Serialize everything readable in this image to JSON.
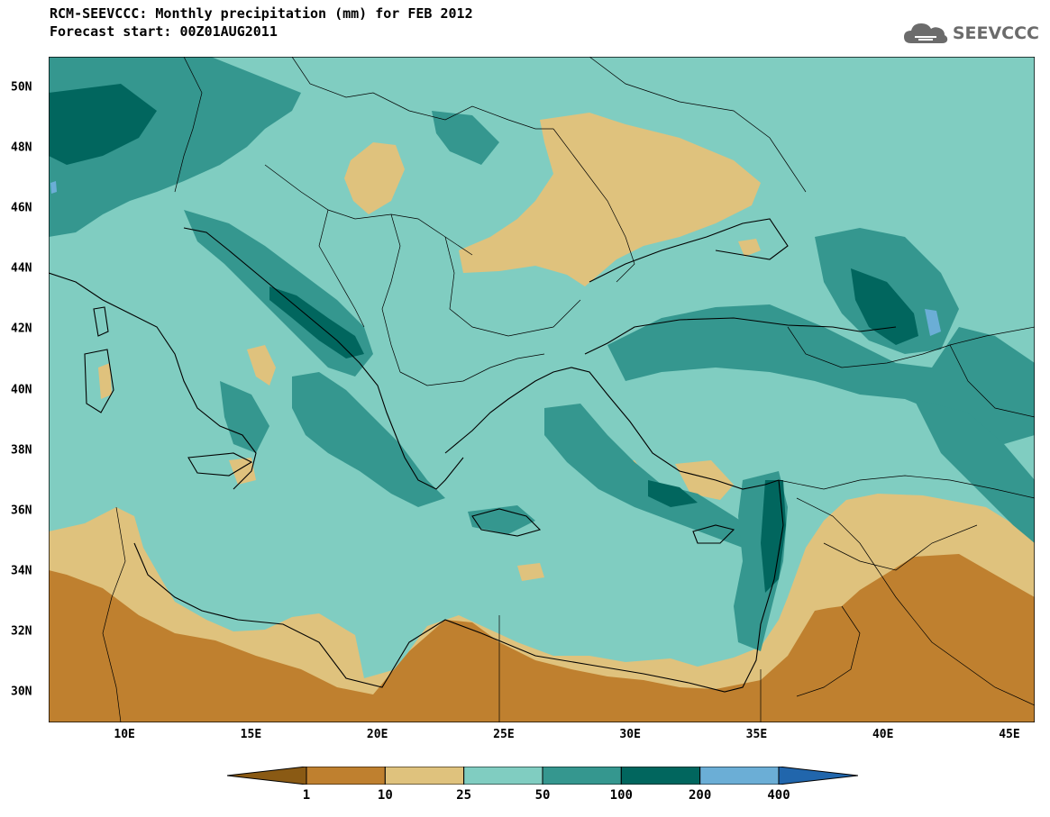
{
  "header": {
    "line1": "RCM-SEEVCCC: Monthly precipitation (mm) for FEB 2012",
    "line2": "Forecast start: 00Z01AUG2011",
    "logo_text": "SEEVCCC",
    "logo_icon": "cloud-icon"
  },
  "map": {
    "region": "Eastern Mediterranean",
    "projection_extent": {
      "lon_min": 7,
      "lon_max": 46,
      "lat_min": 29,
      "lat_max": 51
    },
    "lat_labels": [
      {
        "lat": 50,
        "label": "50N"
      },
      {
        "lat": 48,
        "label": "48N"
      },
      {
        "lat": 46,
        "label": "46N"
      },
      {
        "lat": 44,
        "label": "44N"
      },
      {
        "lat": 42,
        "label": "42N"
      },
      {
        "lat": 40,
        "label": "40N"
      },
      {
        "lat": 38,
        "label": "38N"
      },
      {
        "lat": 36,
        "label": "36N"
      },
      {
        "lat": 34,
        "label": "34N"
      },
      {
        "lat": 32,
        "label": "32N"
      },
      {
        "lat": 30,
        "label": "30N"
      }
    ],
    "lon_labels": [
      {
        "lon": 10,
        "label": "10E"
      },
      {
        "lon": 15,
        "label": "15E"
      },
      {
        "lon": 20,
        "label": "20E"
      },
      {
        "lon": 25,
        "label": "25E"
      },
      {
        "lon": 30,
        "label": "30E"
      },
      {
        "lon": 35,
        "label": "35E"
      },
      {
        "lon": 40,
        "label": "40E"
      },
      {
        "lon": 45,
        "label": "45E"
      }
    ]
  },
  "legend": {
    "colors": [
      "#8a5a14",
      "#bf802f",
      "#dfc27d",
      "#80cdc1",
      "#35978f",
      "#01665e",
      "#6baed6",
      "#2166ac"
    ],
    "labels": [
      "1",
      "10",
      "25",
      "50",
      "100",
      "200",
      "400"
    ]
  }
}
